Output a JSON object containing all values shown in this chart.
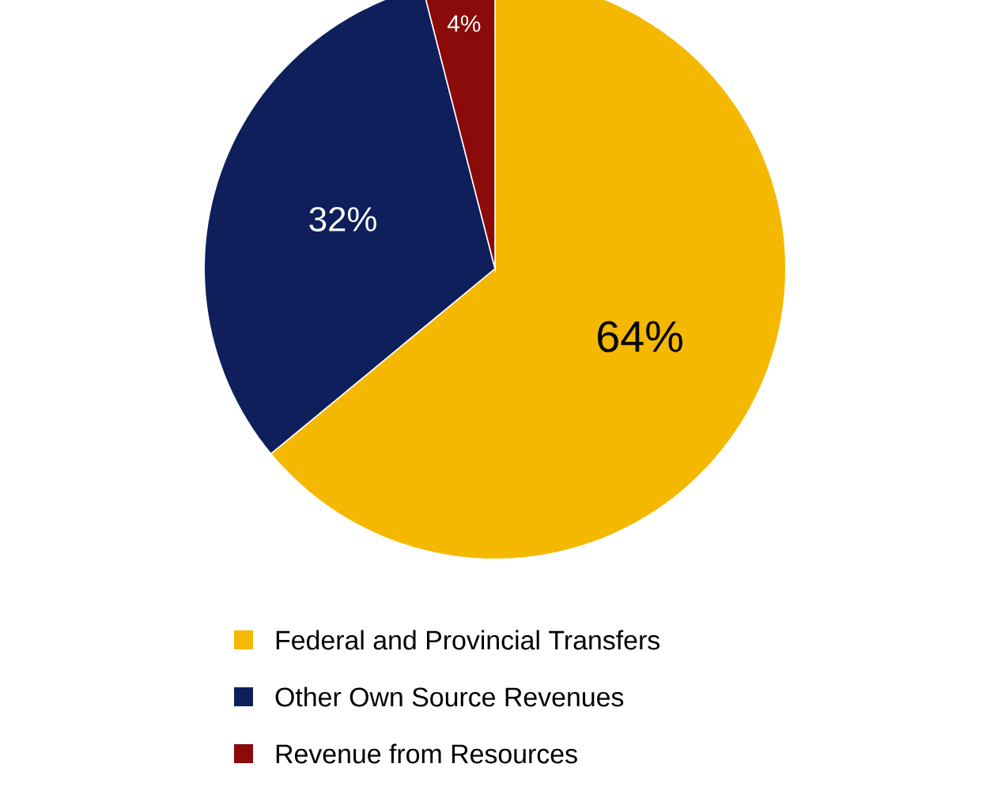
{
  "chart_data": {
    "type": "pie",
    "categories": [
      "Federal and Provincial Transfers",
      "Other Own Source Revenues",
      "Revenue from Resources"
    ],
    "values": [
      64,
      32,
      4
    ],
    "colors": [
      "#f5b800",
      "#0e1f5b",
      "#8b0a0a"
    ],
    "value_labels": [
      "64%",
      "32%",
      "4%"
    ],
    "legend": "bottom"
  }
}
